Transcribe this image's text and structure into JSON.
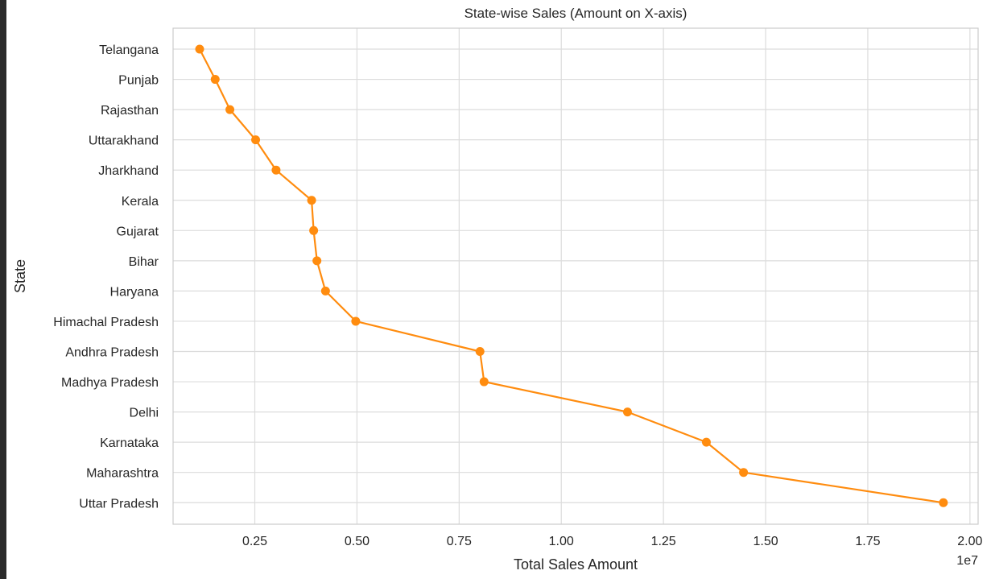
{
  "chart_data": {
    "type": "line",
    "title": "State-wise Sales (Amount on X-axis)",
    "xlabel": "Total Sales Amount",
    "ylabel": "State",
    "x_offset_label": "1e7",
    "xlim": [
      0.05,
      2.02
    ],
    "x_ticks": [
      0.25,
      0.5,
      0.75,
      1.0,
      1.25,
      1.5,
      1.75,
      2.0
    ],
    "x_tick_labels": [
      "0.25",
      "0.50",
      "0.75",
      "1.00",
      "1.25",
      "1.50",
      "1.75",
      "2.00"
    ],
    "categories": [
      "Telangana",
      "Punjab",
      "Rajasthan",
      "Uttarakhand",
      "Jharkhand",
      "Kerala",
      "Gujarat",
      "Bihar",
      "Haryana",
      "Himachal Pradesh",
      "Andhra Pradesh",
      "Madhya Pradesh",
      "Delhi",
      "Karnataka",
      "Maharashtra",
      "Uttar Pradesh"
    ],
    "values": [
      0.115,
      0.153,
      0.189,
      0.252,
      0.302,
      0.389,
      0.394,
      0.402,
      0.423,
      0.497,
      0.801,
      0.811,
      1.162,
      1.355,
      1.446,
      1.935
    ],
    "grid": true,
    "color": "#ff8c0f"
  }
}
